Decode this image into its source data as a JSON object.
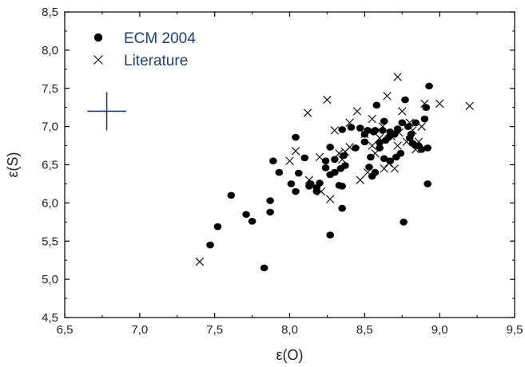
{
  "chart_data": {
    "type": "scatter",
    "xlabel": "ε(O)",
    "ylabel": "ε(S)",
    "xlim": [
      6.5,
      9.5
    ],
    "ylim": [
      4.5,
      8.5
    ],
    "x_ticks": [
      "6,5",
      "7,0",
      "7,5",
      "8,0",
      "8,5",
      "9,0",
      "9,5"
    ],
    "y_ticks": [
      "4,5",
      "5,0",
      "5,5",
      "6,0",
      "6,5",
      "7,0",
      "7,5",
      "8,0",
      "8,5"
    ],
    "grid": false,
    "legend_position": "top-left",
    "error_bar": {
      "x": 6.78,
      "y": 7.2,
      "x_err": 0.13,
      "y_err": 0.25,
      "color": "#1f3f73"
    },
    "text_color": "#1f3f73",
    "series": [
      {
        "name": "ECM 2004",
        "marker": "filled-circle",
        "color": "#000000",
        "points": [
          [
            7.47,
            5.45
          ],
          [
            7.52,
            5.69
          ],
          [
            7.61,
            6.1
          ],
          [
            7.71,
            5.85
          ],
          [
            7.75,
            5.76
          ],
          [
            7.83,
            5.15
          ],
          [
            7.87,
            5.88
          ],
          [
            7.87,
            6.03
          ],
          [
            7.89,
            6.55
          ],
          [
            7.93,
            6.4
          ],
          [
            8.01,
            6.25
          ],
          [
            8.04,
            6.15
          ],
          [
            8.04,
            6.86
          ],
          [
            8.06,
            6.39
          ],
          [
            8.1,
            6.59
          ],
          [
            8.13,
            6.22
          ],
          [
            8.14,
            6.25
          ],
          [
            8.18,
            6.15
          ],
          [
            8.18,
            6.2
          ],
          [
            8.2,
            6.26
          ],
          [
            8.24,
            6.46
          ],
          [
            8.24,
            6.55
          ],
          [
            8.27,
            5.58
          ],
          [
            8.27,
            6.37
          ],
          [
            8.27,
            6.73
          ],
          [
            8.3,
            6.4
          ],
          [
            8.3,
            6.57
          ],
          [
            8.33,
            6.23
          ],
          [
            8.34,
            6.45
          ],
          [
            8.35,
            5.93
          ],
          [
            8.35,
            6.22
          ],
          [
            8.36,
            6.62
          ],
          [
            8.37,
            6.49
          ],
          [
            8.35,
            6.96
          ],
          [
            8.41,
            6.99
          ],
          [
            8.44,
            6.72
          ],
          [
            8.47,
            6.98
          ],
          [
            8.5,
            6.8
          ],
          [
            8.5,
            6.9
          ],
          [
            8.52,
            6.95
          ],
          [
            8.53,
            6.47
          ],
          [
            8.54,
            6.6
          ],
          [
            8.55,
            6.35
          ],
          [
            8.56,
            6.93
          ],
          [
            8.57,
            6.4
          ],
          [
            8.57,
            6.95
          ],
          [
            8.58,
            7.28
          ],
          [
            8.6,
            6.72
          ],
          [
            8.6,
            6.79
          ],
          [
            8.62,
            6.95
          ],
          [
            8.63,
            7.07
          ],
          [
            8.63,
            6.58
          ],
          [
            8.64,
            6.82
          ],
          [
            8.66,
            6.86
          ],
          [
            8.67,
            6.55
          ],
          [
            8.67,
            6.93
          ],
          [
            8.7,
            6.9
          ],
          [
            8.71,
            6.6
          ],
          [
            8.72,
            6.97
          ],
          [
            8.74,
            6.65
          ],
          [
            8.75,
            7.05
          ],
          [
            8.76,
            5.75
          ],
          [
            8.77,
            7.35
          ],
          [
            8.79,
            7.0
          ],
          [
            8.8,
            6.85
          ],
          [
            8.81,
            6.9
          ],
          [
            8.82,
            6.78
          ],
          [
            8.84,
            6.75
          ],
          [
            8.84,
            7.05
          ],
          [
            8.86,
            6.75
          ],
          [
            8.88,
            6.7
          ],
          [
            8.9,
            7.1
          ],
          [
            8.91,
            7.25
          ],
          [
            8.92,
            6.72
          ],
          [
            8.92,
            6.25
          ],
          [
            8.93,
            7.53
          ]
        ]
      },
      {
        "name": "Literature",
        "marker": "cross",
        "color": "#000000",
        "points": [
          [
            7.4,
            5.23
          ],
          [
            8.0,
            6.55
          ],
          [
            8.04,
            6.68
          ],
          [
            8.12,
            7.18
          ],
          [
            8.13,
            6.3
          ],
          [
            8.2,
            6.6
          ],
          [
            8.21,
            6.15
          ],
          [
            8.25,
            7.35
          ],
          [
            8.27,
            6.05
          ],
          [
            8.3,
            6.95
          ],
          [
            8.33,
            6.65
          ],
          [
            8.35,
            6.57
          ],
          [
            8.37,
            6.67
          ],
          [
            8.4,
            6.73
          ],
          [
            8.4,
            7.05
          ],
          [
            8.45,
            7.2
          ],
          [
            8.47,
            6.3
          ],
          [
            8.5,
            6.9
          ],
          [
            8.52,
            6.4
          ],
          [
            8.55,
            7.1
          ],
          [
            8.55,
            6.75
          ],
          [
            8.57,
            6.65
          ],
          [
            8.6,
            6.85
          ],
          [
            8.62,
            7.0
          ],
          [
            8.63,
            6.45
          ],
          [
            8.65,
            7.4
          ],
          [
            8.66,
            6.52
          ],
          [
            8.68,
            6.87
          ],
          [
            8.7,
            6.45
          ],
          [
            8.72,
            7.65
          ],
          [
            8.72,
            6.75
          ],
          [
            8.73,
            6.92
          ],
          [
            8.75,
            7.2
          ],
          [
            8.78,
            6.8
          ],
          [
            8.8,
            7.05
          ],
          [
            8.82,
            6.95
          ],
          [
            8.84,
            6.7
          ],
          [
            8.86,
            6.8
          ],
          [
            8.88,
            7.0
          ],
          [
            8.9,
            7.3
          ],
          [
            9.0,
            7.3
          ],
          [
            9.2,
            7.27
          ]
        ]
      }
    ]
  }
}
